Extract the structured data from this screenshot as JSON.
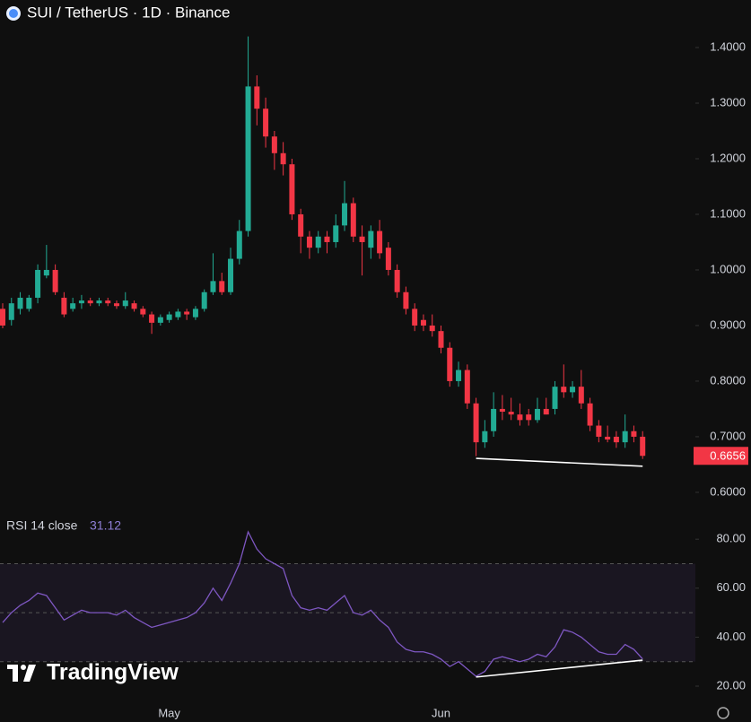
{
  "chart_data": [
    {
      "type": "candlestick",
      "title": "SUI / TetherUS · 1D · Binance",
      "categories": [
        null,
        null,
        null,
        null,
        null,
        null,
        null,
        null,
        null,
        null,
        null,
        null,
        null,
        null,
        null,
        null,
        null,
        null,
        null,
        "May",
        null,
        null,
        null,
        null,
        null,
        null,
        null,
        null,
        null,
        null,
        null,
        null,
        null,
        null,
        null,
        null,
        null,
        null,
        null,
        null,
        null,
        null,
        null,
        null,
        null,
        null,
        null,
        null,
        null,
        null,
        "Jun",
        null,
        null,
        null,
        null,
        null,
        null,
        null,
        null,
        null,
        null,
        null,
        null,
        null,
        null,
        null,
        null,
        null,
        null,
        null,
        null,
        null,
        null,
        null
      ],
      "open": [
        0.93,
        0.91,
        0.93,
        0.93,
        0.95,
        0.99,
        1.0,
        0.95,
        0.93,
        0.94,
        0.945,
        0.94,
        0.945,
        0.94,
        0.935,
        0.94,
        0.93,
        0.92,
        0.905,
        0.91,
        0.915,
        0.925,
        0.915,
        0.93,
        0.96,
        0.98,
        0.96,
        1.02,
        1.07,
        1.33,
        1.29,
        1.24,
        1.21,
        1.19,
        1.1,
        1.06,
        1.04,
        1.06,
        1.05,
        1.08,
        1.12,
        1.06,
        1.04,
        1.07,
        1.04,
        1.0,
        0.96,
        0.93,
        0.91,
        0.9,
        0.89,
        0.86,
        0.8,
        0.82,
        0.76,
        0.69,
        0.71,
        0.75,
        0.745,
        0.74,
        0.74,
        0.73,
        0.75,
        0.75,
        0.79,
        0.78,
        0.79,
        0.76,
        0.72,
        0.7,
        0.7,
        0.69,
        0.71,
        0.7
      ],
      "high": [
        0.94,
        0.95,
        0.96,
        0.955,
        1.01,
        1.045,
        1.01,
        0.96,
        0.95,
        0.955,
        0.95,
        0.95,
        0.95,
        0.945,
        0.96,
        0.945,
        0.935,
        0.925,
        0.92,
        0.925,
        0.93,
        0.93,
        0.935,
        0.965,
        1.03,
        0.995,
        1.04,
        1.09,
        1.42,
        1.35,
        1.31,
        1.25,
        1.23,
        1.2,
        1.11,
        1.07,
        1.07,
        1.07,
        1.1,
        1.16,
        1.13,
        1.08,
        1.08,
        1.09,
        1.05,
        1.01,
        0.97,
        0.94,
        0.92,
        0.92,
        0.9,
        0.87,
        0.835,
        0.83,
        0.77,
        0.73,
        0.78,
        0.775,
        0.77,
        0.76,
        0.75,
        0.77,
        0.77,
        0.8,
        0.83,
        0.8,
        0.82,
        0.77,
        0.73,
        0.72,
        0.71,
        0.74,
        0.72,
        0.71
      ],
      "low": [
        0.895,
        0.9,
        0.92,
        0.925,
        0.94,
        0.985,
        0.955,
        0.915,
        0.925,
        0.93,
        0.935,
        0.935,
        0.935,
        0.93,
        0.93,
        0.925,
        0.915,
        0.885,
        0.9,
        0.905,
        0.91,
        0.91,
        0.91,
        0.925,
        0.955,
        0.955,
        0.955,
        1.01,
        1.06,
        1.26,
        1.22,
        1.18,
        1.17,
        1.09,
        1.03,
        1.02,
        1.03,
        1.03,
        1.04,
        1.07,
        1.05,
        0.99,
        1.02,
        1.02,
        0.99,
        0.95,
        0.92,
        0.89,
        0.89,
        0.88,
        0.85,
        0.79,
        0.79,
        0.75,
        0.665,
        0.68,
        0.7,
        0.73,
        0.73,
        0.72,
        0.72,
        0.725,
        0.74,
        0.74,
        0.77,
        0.77,
        0.75,
        0.71,
        0.69,
        0.69,
        0.68,
        0.68,
        0.69,
        0.66
      ],
      "close": [
        0.9,
        0.94,
        0.95,
        0.95,
        1.0,
        1.0,
        0.96,
        0.92,
        0.94,
        0.945,
        0.94,
        0.945,
        0.94,
        0.935,
        0.945,
        0.93,
        0.92,
        0.905,
        0.915,
        0.92,
        0.925,
        0.92,
        0.93,
        0.96,
        0.98,
        0.96,
        1.02,
        1.07,
        1.33,
        1.29,
        1.24,
        1.21,
        1.19,
        1.1,
        1.06,
        1.04,
        1.06,
        1.05,
        1.08,
        1.12,
        1.06,
        1.05,
        1.07,
        1.03,
        1.0,
        0.96,
        0.93,
        0.9,
        0.9,
        0.89,
        0.86,
        0.8,
        0.82,
        0.76,
        0.69,
        0.71,
        0.75,
        0.745,
        0.74,
        0.73,
        0.73,
        0.75,
        0.74,
        0.79,
        0.78,
        0.79,
        0.76,
        0.72,
        0.7,
        0.695,
        0.69,
        0.71,
        0.7,
        0.6656
      ],
      "up_color": "#22ab94",
      "down_color": "#f23645",
      "ylim": [
        0.566,
        1.4855
      ],
      "yticks": [
        {
          "value": 0.6,
          "label": "0.6000"
        },
        {
          "value": 0.7,
          "label": "0.7000"
        },
        {
          "value": 0.8,
          "label": "0.8000"
        },
        {
          "value": 0.9,
          "label": "0.9000"
        },
        {
          "value": 1.0,
          "label": "1.0000"
        },
        {
          "value": 1.1,
          "label": "1.1000"
        },
        {
          "value": 1.2,
          "label": "1.2000"
        },
        {
          "value": 1.3,
          "label": "1.3000"
        },
        {
          "value": 1.4,
          "label": "1.4000"
        }
      ],
      "trendline": {
        "x": [
          54,
          73
        ],
        "y": [
          0.661,
          0.647
        ]
      },
      "watermark": "TradingView"
    },
    {
      "type": "line",
      "title": "RSI 14 close",
      "color": "#7e57c2",
      "values": [
        46,
        50,
        53,
        55,
        58,
        57,
        52,
        47,
        49,
        51,
        50,
        50,
        50,
        49,
        51,
        48,
        46,
        44,
        45,
        46,
        47,
        48,
        50,
        54,
        60,
        55,
        62,
        70,
        83,
        76,
        72,
        70,
        68,
        57,
        52,
        51,
        52,
        51,
        54,
        57,
        50,
        49,
        51,
        47,
        44,
        38,
        35,
        34,
        34,
        33,
        31,
        28,
        30,
        27,
        24,
        26,
        31,
        32,
        31,
        30,
        31,
        33,
        32,
        36,
        43,
        42,
        40,
        37,
        34,
        33,
        33,
        37,
        35,
        31.12
      ],
      "ylim": [
        14.5,
        89.6
      ],
      "yticks": [
        {
          "value": 20,
          "label": "20.00"
        },
        {
          "value": 40,
          "label": "40.00"
        },
        {
          "value": 60,
          "label": "60.00"
        },
        {
          "value": 80,
          "label": "80.00"
        }
      ],
      "band": [
        30,
        70
      ],
      "midline": 50,
      "trendline": {
        "x": [
          54,
          73
        ],
        "y": [
          23.7,
          30.6
        ]
      }
    }
  ]
}
